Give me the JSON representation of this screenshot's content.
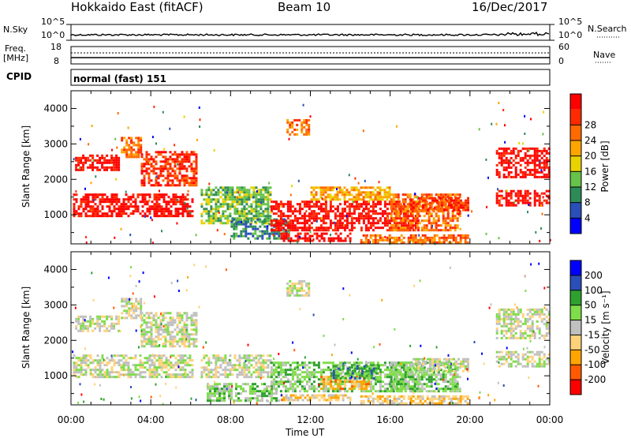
{
  "header": {
    "station": "Hokkaido East (fitACF)",
    "beam": "Beam 10",
    "date": "16/Dec/2017"
  },
  "strip": {
    "nsky_label": "N.Sky",
    "nsearch_label": "N.Search",
    "nsky_top": "10^5",
    "nsky_bottom": "10^0",
    "nsearch_top": "10^5",
    "nsearch_bottom": "10^0",
    "freq_label": "Freq.",
    "freq_unit": "[MHz]",
    "freq_top": "18",
    "freq_bottom": "8",
    "nave_label": "Nave",
    "nave_top": "60",
    "nave_bottom": "0",
    "cpid_label": "CPID",
    "cpid_value": "normal (fast) 151"
  },
  "colors": {
    "power_scale": [
      "#0000ff",
      "#2a4fb8",
      "#2e8b57",
      "#66c24a",
      "#e8d200",
      "#ffa500",
      "#ff6a00",
      "#ff2a00",
      "#ff0000"
    ],
    "velocity_scale": [
      "#ff0000",
      "#ff5a00",
      "#ffa500",
      "#ffd27a",
      "#c0c0c0",
      "#7fdc4a",
      "#2ea02e",
      "#2a4fb8",
      "#0000ff"
    ],
    "ground_scatter": "#c0c0c0"
  },
  "chart_data": [
    {
      "type": "heatmap",
      "name": "power",
      "ylabel": "Slant Range [km]",
      "xlabel": "",
      "colorbar_label": "Power [dB]",
      "colorbar_ticks": [
        "4",
        "8",
        "12",
        "16",
        "20",
        "24",
        "28"
      ],
      "xlim": [
        0,
        24
      ],
      "ylim": [
        180,
        4500
      ],
      "x_ticks": [
        "00:00",
        "04:00",
        "08:00",
        "12:00",
        "16:00",
        "20:00",
        "00:00"
      ],
      "y_ticks": [
        "1000",
        "2000",
        "3000",
        "4000"
      ],
      "y_tick_values": [
        1000,
        2000,
        3000,
        4000
      ],
      "regions": [
        {
          "t0": 0.1,
          "t1": 6.2,
          "r0": 900,
          "r1": 1600,
          "level": 8
        },
        {
          "t0": 0.2,
          "t1": 2.5,
          "r0": 2200,
          "r1": 2700,
          "level": 8
        },
        {
          "t0": 3.5,
          "t1": 6.3,
          "r0": 1800,
          "r1": 2800,
          "level": 7
        },
        {
          "t0": 2.5,
          "t1": 3.6,
          "r0": 2600,
          "r1": 3200,
          "level": 6
        },
        {
          "t0": 6.5,
          "t1": 10.0,
          "r0": 700,
          "r1": 1800,
          "level": 3
        },
        {
          "t0": 8.0,
          "t1": 11.0,
          "r0": 300,
          "r1": 900,
          "level": 2
        },
        {
          "t0": 10.0,
          "t1": 17.5,
          "r0": 500,
          "r1": 1400,
          "level": 8
        },
        {
          "t0": 12.0,
          "t1": 16.0,
          "r0": 1400,
          "r1": 1800,
          "level": 5
        },
        {
          "t0": 10.5,
          "t1": 14.0,
          "r0": 250,
          "r1": 500,
          "level": 8
        },
        {
          "t0": 16.0,
          "t1": 19.5,
          "r0": 500,
          "r1": 1600,
          "level": 6
        },
        {
          "t0": 17.0,
          "t1": 20.0,
          "r0": 1100,
          "r1": 1500,
          "level": 7
        },
        {
          "t0": 10.8,
          "t1": 12.0,
          "r0": 3200,
          "r1": 3700,
          "level": 6
        },
        {
          "t0": 21.3,
          "t1": 24.0,
          "r0": 1200,
          "r1": 1700,
          "level": 8
        },
        {
          "t0": 21.3,
          "t1": 24.0,
          "r0": 2000,
          "r1": 2900,
          "level": 8
        },
        {
          "t0": 14.5,
          "t1": 20.0,
          "r0": 200,
          "r1": 450,
          "level": 6
        }
      ]
    },
    {
      "type": "heatmap",
      "name": "velocity",
      "ylabel": "Slant Range [km]",
      "xlabel": "Time UT",
      "colorbar_label": "Velocity [m s⁻¹]",
      "colorbar_ticks": [
        "-200",
        "-100",
        "-50",
        "-15",
        "15",
        "50",
        "100",
        "200"
      ],
      "xlim": [
        0,
        24
      ],
      "ylim": [
        180,
        4500
      ],
      "x_ticks": [
        "00:00",
        "04:00",
        "08:00",
        "12:00",
        "16:00",
        "20:00",
        "00:00"
      ],
      "y_ticks": [
        "1000",
        "2000",
        "3000",
        "4000"
      ],
      "y_tick_values": [
        1000,
        2000,
        3000,
        4000
      ],
      "regions": [
        {
          "t0": 0.1,
          "t1": 6.2,
          "r0": 900,
          "r1": 1600,
          "level": 4
        },
        {
          "t0": 0.2,
          "t1": 2.5,
          "r0": 2200,
          "r1": 2700,
          "level": 4
        },
        {
          "t0": 3.5,
          "t1": 6.3,
          "r0": 1800,
          "r1": 2800,
          "level": 4
        },
        {
          "t0": 2.5,
          "t1": 3.6,
          "r0": 2600,
          "r1": 3200,
          "level": 4
        },
        {
          "t0": 6.5,
          "t1": 10.0,
          "r0": 900,
          "r1": 1600,
          "level": 4
        },
        {
          "t0": 6.8,
          "t1": 10.5,
          "r0": 250,
          "r1": 800,
          "level": 5
        },
        {
          "t0": 10.0,
          "t1": 17.5,
          "r0": 500,
          "r1": 1400,
          "level": 5
        },
        {
          "t0": 12.5,
          "t1": 15.0,
          "r0": 600,
          "r1": 1000,
          "level": 2
        },
        {
          "t0": 13.0,
          "t1": 15.5,
          "r0": 900,
          "r1": 1300,
          "level": 6
        },
        {
          "t0": 16.0,
          "t1": 19.5,
          "r0": 500,
          "r1": 1400,
          "level": 5
        },
        {
          "t0": 17.0,
          "t1": 20.0,
          "r0": 1100,
          "r1": 1500,
          "level": 4
        },
        {
          "t0": 10.8,
          "t1": 12.0,
          "r0": 3200,
          "r1": 3700,
          "level": 4
        },
        {
          "t0": 21.3,
          "t1": 24.0,
          "r0": 1200,
          "r1": 1700,
          "level": 4
        },
        {
          "t0": 21.3,
          "t1": 24.0,
          "r0": 2000,
          "r1": 2900,
          "level": 4
        },
        {
          "t0": 10.5,
          "t1": 14.0,
          "r0": 250,
          "r1": 480,
          "level": 3
        },
        {
          "t0": 14.5,
          "t1": 20.0,
          "r0": 200,
          "r1": 450,
          "level": 3
        }
      ]
    }
  ]
}
